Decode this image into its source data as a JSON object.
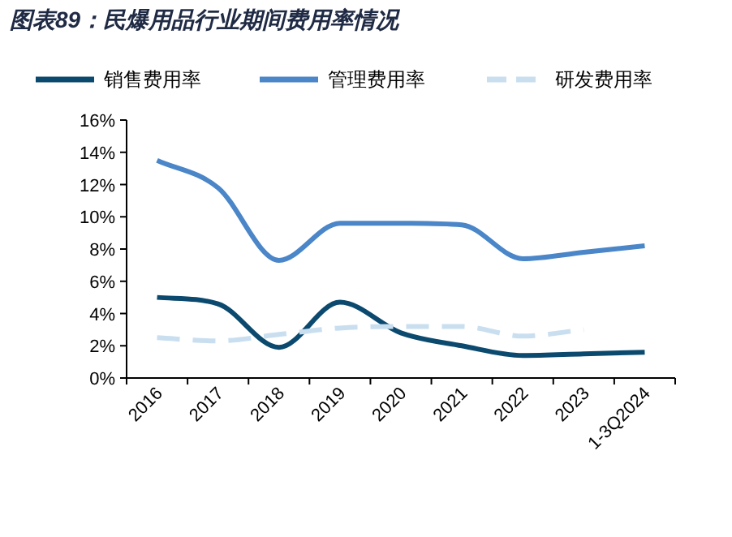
{
  "chart_data": {
    "type": "line",
    "title": "图表89：民爆用品行业期间费用率情况",
    "categories": [
      "2016",
      "2017",
      "2018",
      "2019",
      "2020",
      "2021",
      "2022",
      "2023",
      "1-3Q2024"
    ],
    "series": [
      {
        "name": "销售费用率",
        "color": "#0b4a6e",
        "values": [
          5.0,
          4.6,
          1.9,
          4.7,
          2.8,
          2.0,
          1.4,
          1.5,
          1.6
        ]
      },
      {
        "name": "管理费用率",
        "color": "#4a86c8",
        "values": [
          13.5,
          11.8,
          7.3,
          9.6,
          9.6,
          9.5,
          7.4,
          7.8,
          8.2
        ]
      },
      {
        "name": "研发费用率",
        "color": "#c9dff0",
        "line_style": "dashed",
        "values": [
          2.5,
          2.3,
          2.7,
          3.1,
          3.2,
          3.2,
          2.6,
          3.0,
          null
        ]
      }
    ],
    "ylim": [
      0,
      16
    ],
    "yticks": [
      {
        "value": 0,
        "label": "0%"
      },
      {
        "value": 2,
        "label": "2%"
      },
      {
        "value": 4,
        "label": "4%"
      },
      {
        "value": 6,
        "label": "6%"
      },
      {
        "value": 8,
        "label": "8%"
      },
      {
        "value": 10,
        "label": "10%"
      },
      {
        "value": 12,
        "label": "12%"
      },
      {
        "value": 14,
        "label": "14%"
      },
      {
        "value": 16,
        "label": "16%"
      }
    ],
    "grid": false,
    "legend": "top",
    "marker": "none"
  }
}
